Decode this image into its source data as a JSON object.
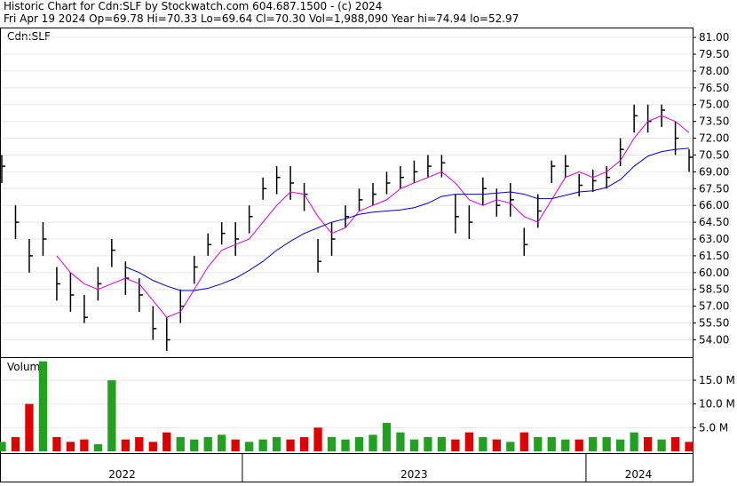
{
  "chart_data": {
    "type": "ohlc",
    "title": "Historic Chart for Cdn:SLF by Stockwatch.com 604.687.1500 - (c) 2024",
    "subtitle": "Fri Apr 19 2024  Op=69.78  Hi=70.33  Lo=69.64  Cl=70.30  Vol=1,988,090  Year hi=74.94  lo=52.97",
    "symbol_label": "Cdn:SLF",
    "x": [
      2022.3,
      2022.34,
      2022.38,
      2022.42,
      2022.46,
      2022.5,
      2022.54,
      2022.58,
      2022.62,
      2022.66,
      2022.7,
      2022.74,
      2022.78,
      2022.82,
      2022.86,
      2022.9,
      2022.94,
      2022.98,
      2023.02,
      2023.06,
      2023.1,
      2023.14,
      2023.18,
      2023.22,
      2023.26,
      2023.3,
      2023.34,
      2023.38,
      2023.42,
      2023.46,
      2023.5,
      2023.54,
      2023.58,
      2023.62,
      2023.66,
      2023.7,
      2023.74,
      2023.78,
      2023.82,
      2023.86,
      2023.9,
      2023.94,
      2023.98,
      2024.02,
      2024.06,
      2024.1,
      2024.14,
      2024.18,
      2024.22,
      2024.26,
      2024.3
    ],
    "xlim": [
      2022.3,
      2024.305
    ],
    "year_boundaries": [
      2023,
      2024
    ],
    "year_labels": [
      "2022",
      "2023",
      "2024"
    ],
    "high": [
      70.5,
      66,
      63,
      64.5,
      60.5,
      60,
      58,
      60.5,
      63,
      61,
      59.5,
      57,
      56,
      58.5,
      61.5,
      63.5,
      64.5,
      64.5,
      66,
      68.5,
      69.5,
      69.5,
      68,
      63,
      64.5,
      66,
      67.5,
      68,
      69,
      69.5,
      70,
      70.5,
      70.5,
      67,
      66,
      68.5,
      67.5,
      68,
      64,
      67,
      70,
      70.5,
      68.8,
      69.2,
      69.5,
      72,
      75,
      75,
      75,
      73.5,
      71
    ],
    "low": [
      68,
      63,
      60,
      61.5,
      57.5,
      56.5,
      55.5,
      57.5,
      60.5,
      58,
      56.5,
      54,
      53,
      55.5,
      59,
      61.5,
      62.5,
      61.5,
      63.5,
      66.5,
      67,
      66.5,
      65.5,
      60,
      61.5,
      64,
      65.5,
      66,
      67,
      67.5,
      68,
      68.5,
      68.5,
      63.5,
      63,
      66,
      65,
      65,
      61.5,
      64,
      68,
      68.5,
      66.8,
      67.2,
      67.5,
      69.5,
      72.5,
      72.5,
      73,
      70.5,
      69
    ],
    "close": [
      69.5,
      64.5,
      61.5,
      63,
      59,
      58,
      56,
      59,
      62,
      59.5,
      58,
      55,
      54,
      57,
      60.5,
      62.5,
      63.5,
      63,
      65,
      67.5,
      68.5,
      68,
      67,
      61,
      63,
      65,
      66.5,
      67,
      68,
      68.5,
      69,
      69.5,
      69.8,
      65,
      64.5,
      67.5,
      66,
      66.5,
      62.5,
      65.5,
      69.5,
      69.5,
      67.8,
      68.2,
      68.5,
      71,
      74,
      73.5,
      74.5,
      72,
      70.3
    ],
    "bar_color": "#000000",
    "series": [
      {
        "color": "#d400d4",
        "values": [
          null,
          null,
          null,
          null,
          61.5,
          60,
          59,
          58.5,
          59,
          59.5,
          59,
          57.5,
          56,
          56.5,
          58.5,
          60.5,
          62,
          62.5,
          63,
          64.5,
          66,
          67.2,
          67,
          65,
          63.5,
          64,
          65.5,
          66,
          66.5,
          67.5,
          68,
          68.5,
          69,
          68,
          66.5,
          66,
          66.5,
          66.2,
          65,
          64.5,
          66.5,
          68.5,
          69,
          68.5,
          69,
          70,
          72,
          73.5,
          74,
          73.5,
          72.5
        ]
      },
      {
        "color": "#0000cc",
        "values": [
          null,
          null,
          null,
          null,
          null,
          null,
          null,
          null,
          null,
          60.5,
          60,
          59.3,
          58.8,
          58.4,
          58.4,
          58.6,
          59,
          59.5,
          60.2,
          61,
          62,
          62.8,
          63.5,
          64,
          64.5,
          64.8,
          65.2,
          65.4,
          65.5,
          65.6,
          65.8,
          66.2,
          66.8,
          67,
          67,
          67,
          67.1,
          67.2,
          67,
          66.6,
          66.6,
          66.9,
          67.2,
          67.3,
          67.6,
          68.3,
          69.5,
          70.4,
          70.8,
          71,
          71.1
        ]
      }
    ],
    "ylim": [
      52.45,
      81.8
    ],
    "yticks": [
      {
        "value": 54,
        "label": "54.00"
      },
      {
        "value": 55.5,
        "label": "55.50"
      },
      {
        "value": 57,
        "label": "57.00"
      },
      {
        "value": 58.5,
        "label": "58.50"
      },
      {
        "value": 60,
        "label": "60.00"
      },
      {
        "value": 61.5,
        "label": "61.50"
      },
      {
        "value": 63,
        "label": "63.00"
      },
      {
        "value": 64.5,
        "label": "64.50"
      },
      {
        "value": 66,
        "label": "66.00"
      },
      {
        "value": 67.5,
        "label": "67.50"
      },
      {
        "value": 69,
        "label": "69.00"
      },
      {
        "value": 70.5,
        "label": "70.50"
      },
      {
        "value": 72,
        "label": "72.00"
      },
      {
        "value": 73.5,
        "label": "73.50"
      },
      {
        "value": 75,
        "label": "75.00"
      },
      {
        "value": 76.5,
        "label": "76.50"
      },
      {
        "value": 78,
        "label": "78.00"
      },
      {
        "value": 79.5,
        "label": "79.50"
      },
      {
        "value": 81,
        "label": "81.00"
      }
    ],
    "grid": true,
    "volume": {
      "type": "bar",
      "label": "Volume",
      "values": [
        2,
        3,
        10,
        19,
        3,
        2,
        2.5,
        1.5,
        15,
        2.5,
        3,
        2,
        4,
        3,
        2.5,
        3,
        3.5,
        2.5,
        2,
        2.5,
        3,
        2.5,
        3,
        5,
        3,
        2.5,
        3,
        3.5,
        6,
        4,
        2.5,
        3,
        3,
        2.5,
        4,
        3,
        2.5,
        2,
        4,
        3,
        3,
        2.5,
        2.5,
        3,
        3,
        2.5,
        4,
        3,
        2.5,
        3,
        2
      ],
      "up_color": "#22a022",
      "down_color": "#dd0000",
      "ylim": [
        0,
        19.5
      ],
      "yticks": [
        {
          "value": 5,
          "label": "5.0 M"
        },
        {
          "value": 10,
          "label": "10.0 M"
        },
        {
          "value": 15,
          "label": "15.0 M"
        }
      ]
    }
  }
}
